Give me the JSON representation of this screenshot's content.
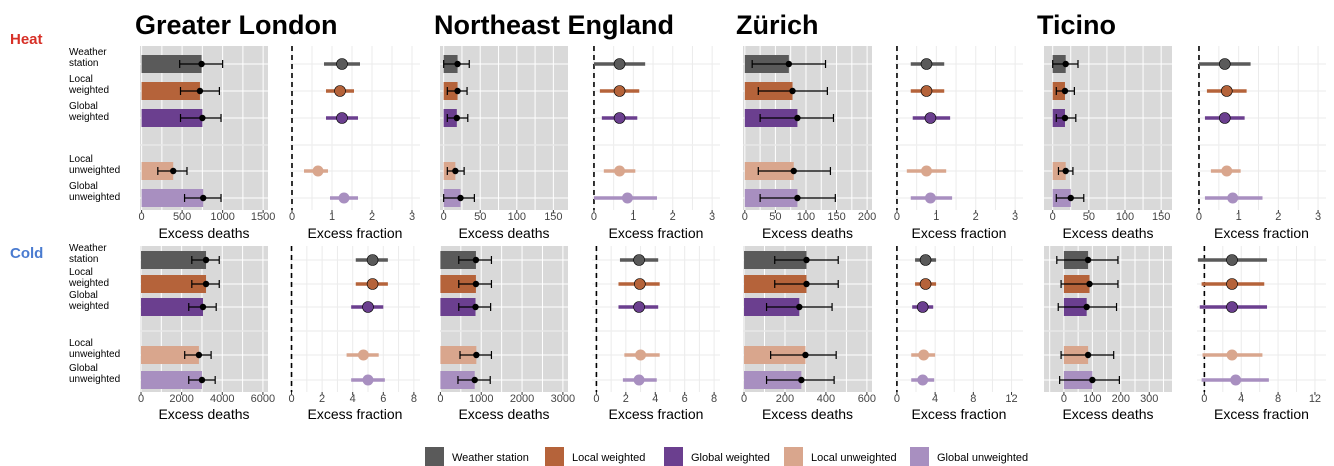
{
  "figure": {
    "row_labels": [
      {
        "text": "Heat",
        "color": "#d73027"
      },
      {
        "text": "Cold",
        "color": "#4a7bd0"
      }
    ],
    "category_labels": [
      [
        "Weather",
        "station"
      ],
      [
        "Local",
        "weighted"
      ],
      [
        "Global",
        "weighted"
      ],
      [
        "Local",
        "unweighted"
      ],
      [
        "Global",
        "unweighted"
      ]
    ],
    "panel_bg": "#d9d9d9",
    "grid_color": "#ebebeb"
  },
  "legend": {
    "items": [
      {
        "label": "Weather station",
        "color": "#5a5a5a"
      },
      {
        "label": "Local weighted",
        "color": "#b5633a"
      },
      {
        "label": "Global weighted",
        "color": "#6b3f8f"
      },
      {
        "label": "Local unweighted",
        "color": "#d9a68d"
      },
      {
        "label": "Global unweighted",
        "color": "#a88fc0"
      }
    ]
  },
  "chart_data": [
    {
      "region": "Greater London",
      "season": "Heat",
      "type": "bar",
      "xlabel": "Excess deaths",
      "xlim": [
        -20,
        1560
      ],
      "ticks": [
        0,
        500,
        1000,
        1500
      ],
      "grid": true,
      "categories": [
        "Weather station",
        "Local weighted",
        "Global weighted",
        "Local unweighted",
        "Global unweighted"
      ],
      "values": [
        740,
        720,
        750,
        390,
        760
      ],
      "lower": [
        470,
        480,
        480,
        200,
        530
      ],
      "upper": [
        1000,
        960,
        980,
        560,
        980
      ]
    },
    {
      "region": "Greater London",
      "season": "Heat",
      "type": "scatter",
      "xlabel": "Excess fraction",
      "xlim": [
        -0.05,
        3.2
      ],
      "ticks": [
        0,
        1,
        2,
        3
      ],
      "grid": true,
      "reference_line": 0,
      "values": [
        1.25,
        1.2,
        1.25,
        0.65,
        1.3
      ],
      "lower": [
        0.8,
        0.85,
        0.85,
        0.3,
        0.95
      ],
      "upper": [
        1.7,
        1.55,
        1.65,
        0.9,
        1.65
      ]
    },
    {
      "region": "Northeast England",
      "season": "Heat",
      "type": "bar",
      "xlabel": "Excess deaths",
      "xlim": [
        -5,
        170
      ],
      "ticks": [
        0,
        50,
        100,
        150
      ],
      "grid": true,
      "values": [
        19,
        19,
        18,
        16,
        23
      ],
      "lower": [
        0,
        5,
        5,
        5,
        0
      ],
      "upper": [
        35,
        32,
        33,
        28,
        42
      ]
    },
    {
      "region": "Northeast England",
      "season": "Heat",
      "type": "scatter",
      "xlabel": "Excess fraction",
      "xlim": [
        -0.05,
        3.2
      ],
      "ticks": [
        0,
        1,
        2,
        3
      ],
      "grid": true,
      "reference_line": 0,
      "values": [
        0.65,
        0.65,
        0.65,
        0.65,
        0.85
      ],
      "lower": [
        0.0,
        0.15,
        0.2,
        0.25,
        0.0
      ],
      "upper": [
        1.3,
        1.15,
        1.1,
        1.05,
        1.6
      ]
    },
    {
      "region": "Zürich",
      "season": "Heat",
      "type": "bar",
      "xlabel": "Excess deaths",
      "xlim": [
        -3,
        208
      ],
      "ticks": [
        0,
        50,
        100,
        150,
        200
      ],
      "grid": true,
      "values": [
        72,
        78,
        86,
        80,
        86
      ],
      "lower": [
        12,
        22,
        25,
        22,
        25
      ],
      "upper": [
        132,
        135,
        145,
        140,
        148
      ]
    },
    {
      "region": "Zürich",
      "season": "Heat",
      "type": "scatter",
      "xlabel": "Excess fraction",
      "xlim": [
        -0.05,
        3.2
      ],
      "ticks": [
        0,
        1,
        2,
        3
      ],
      "grid": true,
      "reference_line": 0,
      "values": [
        0.75,
        0.75,
        0.85,
        0.75,
        0.85
      ],
      "lower": [
        0.35,
        0.35,
        0.4,
        0.25,
        0.35
      ],
      "upper": [
        1.2,
        1.2,
        1.35,
        1.25,
        1.4
      ]
    },
    {
      "region": "Ticino",
      "season": "Heat",
      "type": "bar",
      "xlabel": "Excess deaths",
      "xlim": [
        -12,
        165
      ],
      "ticks": [
        0,
        50,
        100,
        150
      ],
      "grid": true,
      "values": [
        18,
        17,
        17,
        18,
        25
      ],
      "lower": [
        0,
        5,
        5,
        8,
        5
      ],
      "upper": [
        35,
        30,
        32,
        28,
        43
      ]
    },
    {
      "region": "Ticino",
      "season": "Heat",
      "type": "scatter",
      "xlabel": "Excess fraction",
      "xlim": [
        -0.05,
        3.2
      ],
      "ticks": [
        0,
        1,
        2,
        3
      ],
      "grid": true,
      "reference_line": 0,
      "values": [
        0.65,
        0.7,
        0.65,
        0.7,
        0.85
      ],
      "lower": [
        0.0,
        0.2,
        0.15,
        0.3,
        0.15
      ],
      "upper": [
        1.3,
        1.2,
        1.15,
        1.05,
        1.6
      ]
    },
    {
      "region": "Greater London",
      "season": "Cold",
      "type": "bar",
      "xlabel": "Excess deaths",
      "xlim": [
        -50,
        6250
      ],
      "ticks": [
        0,
        2000,
        4000,
        6000
      ],
      "grid": true,
      "values": [
        3200,
        3200,
        3050,
        2850,
        3000
      ],
      "lower": [
        2500,
        2500,
        2350,
        2150,
        2350
      ],
      "upper": [
        3850,
        3850,
        3700,
        3450,
        3650
      ]
    },
    {
      "region": "Greater London",
      "season": "Cold",
      "type": "scatter",
      "xlabel": "Excess fraction",
      "xlim": [
        -0.1,
        8.4
      ],
      "ticks": [
        0,
        2,
        4,
        6,
        8
      ],
      "grid": true,
      "reference_line": 0,
      "values": [
        5.3,
        5.3,
        5.0,
        4.7,
        5.0
      ],
      "lower": [
        4.2,
        4.2,
        3.9,
        3.6,
        3.9
      ],
      "upper": [
        6.3,
        6.3,
        6.0,
        5.7,
        6.1
      ]
    },
    {
      "region": "Northeast England",
      "season": "Cold",
      "type": "bar",
      "xlabel": "Excess deaths",
      "xlim": [
        -10,
        3125
      ],
      "ticks": [
        0,
        1000,
        2000,
        3000
      ],
      "grid": true,
      "values": [
        870,
        870,
        860,
        880,
        840
      ],
      "lower": [
        450,
        450,
        450,
        480,
        430
      ],
      "upper": [
        1250,
        1250,
        1230,
        1250,
        1220
      ]
    },
    {
      "region": "Northeast England",
      "season": "Cold",
      "type": "scatter",
      "xlabel": "Excess fraction",
      "xlim": [
        -0.3,
        8.4
      ],
      "ticks": [
        0,
        2,
        4,
        6,
        8
      ],
      "grid": true,
      "reference_line": 0,
      "values": [
        2.9,
        2.95,
        2.9,
        3.0,
        2.9
      ],
      "lower": [
        1.6,
        1.5,
        1.5,
        1.9,
        1.8
      ],
      "upper": [
        4.2,
        4.3,
        4.2,
        4.3,
        4.1
      ]
    },
    {
      "region": "Zürich",
      "season": "Cold",
      "type": "bar",
      "xlabel": "Excess deaths",
      "xlim": [
        -5,
        625
      ],
      "ticks": [
        0,
        200,
        400,
        600
      ],
      "grid": true,
      "values": [
        305,
        305,
        270,
        300,
        280
      ],
      "lower": [
        150,
        150,
        110,
        130,
        110
      ],
      "upper": [
        460,
        460,
        430,
        450,
        440
      ]
    },
    {
      "region": "Zürich",
      "season": "Cold",
      "type": "scatter",
      "xlabel": "Excess fraction",
      "xlim": [
        -0.2,
        13.2
      ],
      "ticks": [
        0,
        4,
        8,
        12
      ],
      "grid": true,
      "reference_line": 0,
      "values": [
        3.0,
        3.0,
        2.7,
        2.8,
        2.7
      ],
      "lower": [
        1.9,
        1.9,
        1.6,
        1.5,
        1.5
      ],
      "upper": [
        4.1,
        4.1,
        3.8,
        4.0,
        3.9
      ]
    },
    {
      "region": "Ticino",
      "season": "Cold",
      "type": "bar",
      "xlabel": "Excess deaths",
      "xlim": [
        -70,
        380
      ],
      "ticks": [
        0,
        100,
        200,
        300
      ],
      "grid": true,
      "values": [
        85,
        90,
        80,
        85,
        100
      ],
      "lower": [
        -25,
        -10,
        -20,
        -10,
        -15
      ],
      "upper": [
        190,
        190,
        185,
        175,
        195
      ]
    },
    {
      "region": "Ticino",
      "season": "Cold",
      "type": "scatter",
      "xlabel": "Excess fraction",
      "xlim": [
        -0.8,
        13.2
      ],
      "ticks": [
        0,
        4,
        8,
        12
      ],
      "grid": true,
      "reference_line": 0,
      "values": [
        3.0,
        3.0,
        3.0,
        3.0,
        3.4
      ],
      "lower": [
        -0.7,
        -0.3,
        -0.5,
        -0.2,
        -0.3
      ],
      "upper": [
        6.8,
        6.5,
        6.8,
        6.3,
        7.0
      ]
    }
  ]
}
